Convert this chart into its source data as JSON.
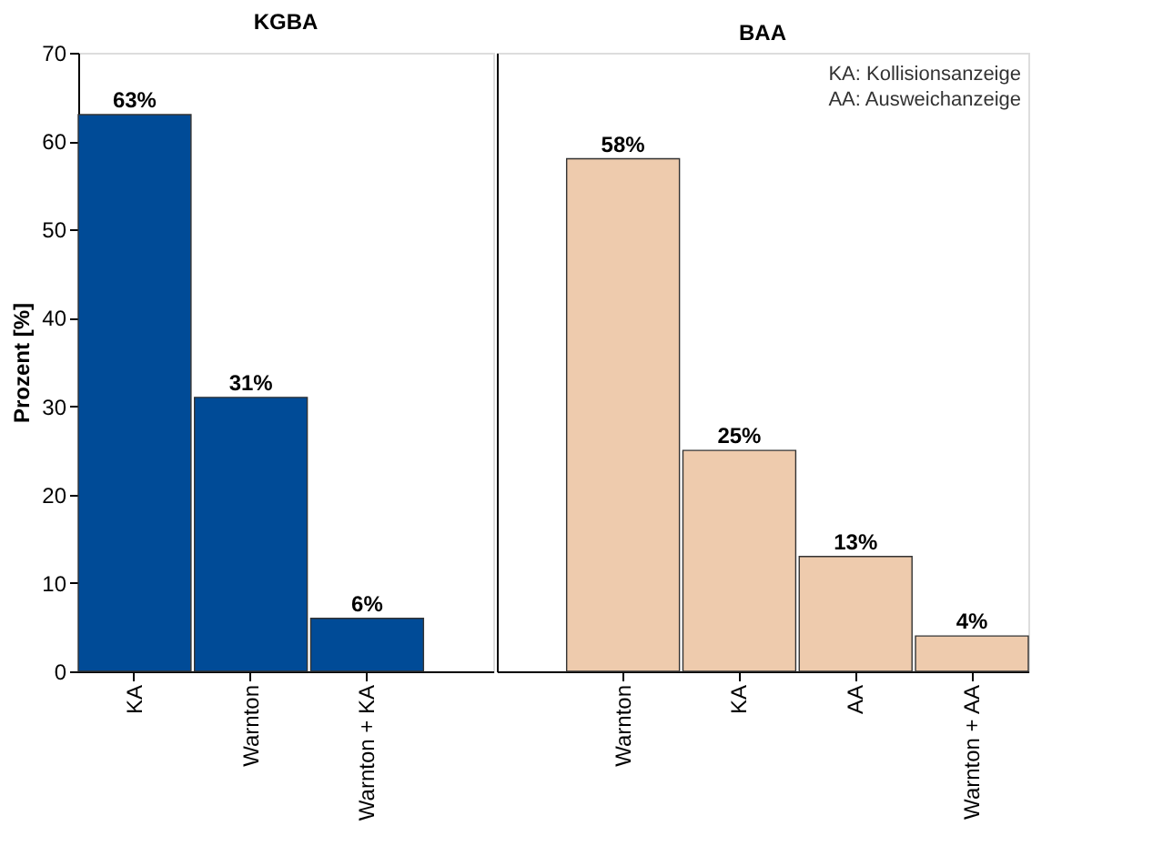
{
  "chart_data": [
    {
      "type": "bar",
      "title": "KGBA",
      "ylabel": "Prozent [%]",
      "categories": [
        "KA",
        "Warnton",
        "Warnton + KA"
      ],
      "values": [
        63,
        31,
        6
      ],
      "colors": [
        "#004b97",
        "#004b97",
        "#004b97"
      ],
      "value_labels": [
        "63%",
        "31%",
        "6%"
      ],
      "ylim": [
        0,
        70
      ],
      "yticks": [
        0,
        10,
        20,
        30,
        40,
        50,
        60,
        70
      ],
      "grid": false
    },
    {
      "type": "bar",
      "title": "BAA",
      "categories": [
        "Warnton",
        "KA",
        "AA",
        "Warnton + AA"
      ],
      "values": [
        58,
        25,
        13,
        4
      ],
      "colors": [
        "#eecbad",
        "#eecbad",
        "#eecbad",
        "#eecbad"
      ],
      "value_labels": [
        "58%",
        "25%",
        "13%",
        "4%"
      ],
      "ylim": [
        0,
        70
      ],
      "yticks": [
        0,
        10,
        20,
        30,
        40,
        50,
        60,
        70
      ],
      "tick_labels": "x",
      "grid": false,
      "annotations": [
        "KA: Kollisionsanzeige",
        "AA: Ausweichanzeige"
      ]
    }
  ]
}
